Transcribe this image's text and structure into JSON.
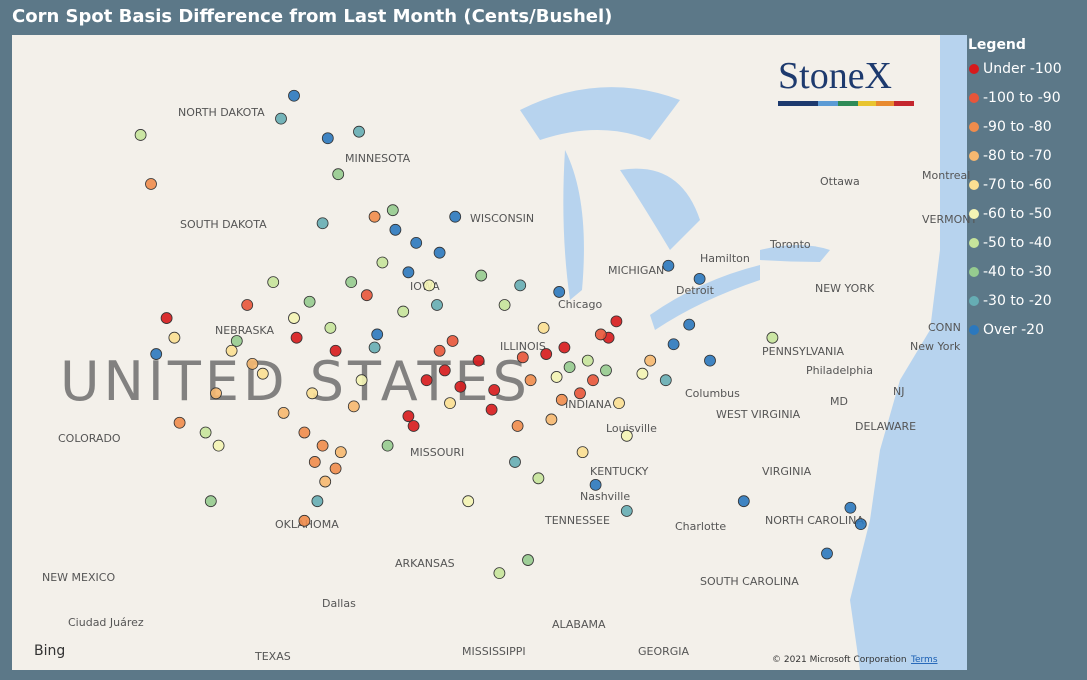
{
  "chart_data": {
    "type": "map",
    "title": "Corn Spot Basis Difference from Last Month (Cents/Bushel)",
    "legend_title": "Legend",
    "logo": "StoneX",
    "attribution": "© 2021 Microsoft Corporation",
    "terms": "Terms",
    "provider": "Bing",
    "map_labels": [
      "NORTH DAKOTA",
      "MINNESOTA",
      "SOUTH DAKOTA",
      "NEBRASKA",
      "UNITED STATES",
      "COLORADO",
      "MISSOURI",
      "KENTUCKY",
      "TENNESSEE",
      "OKLAHOMA",
      "ARKANSAS",
      "NEW MEXICO",
      "TEXAS",
      "MISSISSIPPI",
      "ALABAMA",
      "GEORGIA",
      "SOUTH CAROLINA",
      "NORTH CAROLINA",
      "VIRGINIA",
      "WEST VIRGINIA",
      "PENNSYLVANIA",
      "NEW YORK",
      "INDIANA",
      "MICHIGAN",
      "Chicago",
      "Detroit",
      "Hamilton",
      "Toronto",
      "Ottawa",
      "Montreal",
      "Columbus",
      "Louisville",
      "Nashville",
      "Charlotte",
      "Dallas",
      "Ciudad Juárez",
      "Philadelphia",
      "New York",
      "DELAWARE",
      "MD",
      "NJ",
      "VERMONT",
      "CONN",
      "IOWA",
      "ILLINOIS",
      "WISCONSIN"
    ],
    "series": [
      {
        "name": "Under -100",
        "color": "#d7191c",
        "x": [
          -93.5,
          -92.8,
          -92.2,
          -91.5,
          -94.2,
          -94.0,
          -90.9,
          -88.9,
          -88.2,
          -86.5,
          -86.2,
          -97.0,
          -98.5,
          -103.5,
          -91.0
        ],
        "y": [
          39.6,
          39.9,
          39.4,
          40.2,
          38.5,
          38.2,
          39.3,
          40.4,
          40.6,
          40.9,
          41.4,
          40.5,
          40.9,
          41.5,
          38.7
        ]
      },
      {
        "name": "-100 to -90",
        "color": "#e8553a",
        "x": [
          -92.5,
          -93.0,
          -89.8,
          -87.6,
          -95.8,
          -100.4,
          -86.8,
          -87.1
        ],
        "y": [
          40.8,
          40.5,
          40.3,
          39.2,
          42.2,
          41.9,
          41.0,
          39.6
        ]
      },
      {
        "name": "-90 to -80",
        "color": "#f08c4c",
        "x": [
          -97.5,
          -97.8,
          -98.2,
          -97.0,
          -89.5,
          -88.3,
          -90.0,
          -95.5,
          -98.2,
          -103.0,
          -104.1
        ],
        "y": [
          37.6,
          37.1,
          38.0,
          36.9,
          39.6,
          39.0,
          38.2,
          44.6,
          35.3,
          38.3,
          45.6
        ]
      },
      {
        "name": "-80 to -70",
        "color": "#f6b870",
        "x": [
          -96.8,
          -99.0,
          -96.3,
          -100.2,
          -88.7,
          -84.9,
          -101.6,
          -97.4
        ],
        "y": [
          37.4,
          38.6,
          38.8,
          40.1,
          38.4,
          40.2,
          39.2,
          36.5
        ]
      },
      {
        "name": "-70 to -60",
        "color": "#fbdf92",
        "x": [
          -97.9,
          -99.8,
          -101.0,
          -89.0,
          -86.1,
          -92.6,
          -103.2,
          -87.5
        ],
        "y": [
          39.2,
          39.8,
          40.5,
          41.2,
          38.9,
          38.9,
          40.9,
          37.4
        ]
      },
      {
        "name": "-60 to -50",
        "color": "#f4f4b4",
        "x": [
          -96.0,
          -98.6,
          -93.4,
          -88.5,
          -85.8,
          -91.9,
          -101.5,
          -85.2
        ],
        "y": [
          39.6,
          41.5,
          42.5,
          39.7,
          37.9,
          35.9,
          37.6,
          39.8
        ]
      },
      {
        "name": "-50 to -40",
        "color": "#c7e49b",
        "x": [
          -97.2,
          -95.2,
          -94.4,
          -90.5,
          -87.3,
          -102.0,
          -99.4,
          -89.2,
          -80.2,
          -90.7,
          -104.5
        ],
        "y": [
          41.2,
          43.2,
          41.7,
          41.9,
          40.2,
          38.0,
          42.6,
          36.6,
          40.9,
          33.7,
          47.1
        ]
      },
      {
        "name": "-40 to -30",
        "color": "#96cb8f",
        "x": [
          -98.0,
          -96.4,
          -94.8,
          -91.4,
          -88.0,
          -86.6,
          -100.8,
          -96.9,
          -101.8,
          -89.6,
          -95.0
        ],
        "y": [
          42.0,
          42.6,
          44.8,
          42.8,
          40.0,
          39.9,
          40.8,
          45.9,
          35.9,
          34.1,
          37.6
        ]
      },
      {
        "name": "-30 to -20",
        "color": "#66adb4",
        "x": [
          -99.1,
          -97.5,
          -96.1,
          -93.1,
          -95.5,
          -89.9,
          -84.3,
          -97.7,
          -90.1,
          -85.8
        ],
        "y": [
          47.6,
          44.4,
          47.2,
          41.9,
          40.6,
          42.5,
          39.6,
          35.9,
          37.1,
          35.6
        ]
      },
      {
        "name": "Over -20",
        "color": "#2b78be",
        "x": [
          -94.7,
          -93.9,
          -93.0,
          -94.2,
          -92.4,
          -95.4,
          -84.0,
          -83.4,
          -82.6,
          -83.0,
          -84.2,
          -77.2,
          -76.8,
          -78.1,
          -98.6,
          -97.3,
          -103.9,
          -88.4,
          -87.0,
          -81.3
        ],
        "y": [
          44.2,
          43.8,
          43.5,
          42.9,
          44.6,
          41.0,
          40.7,
          41.3,
          40.2,
          42.7,
          43.1,
          35.7,
          35.2,
          34.3,
          48.3,
          47.0,
          40.4,
          42.3,
          36.4,
          35.9
        ]
      }
    ]
  }
}
